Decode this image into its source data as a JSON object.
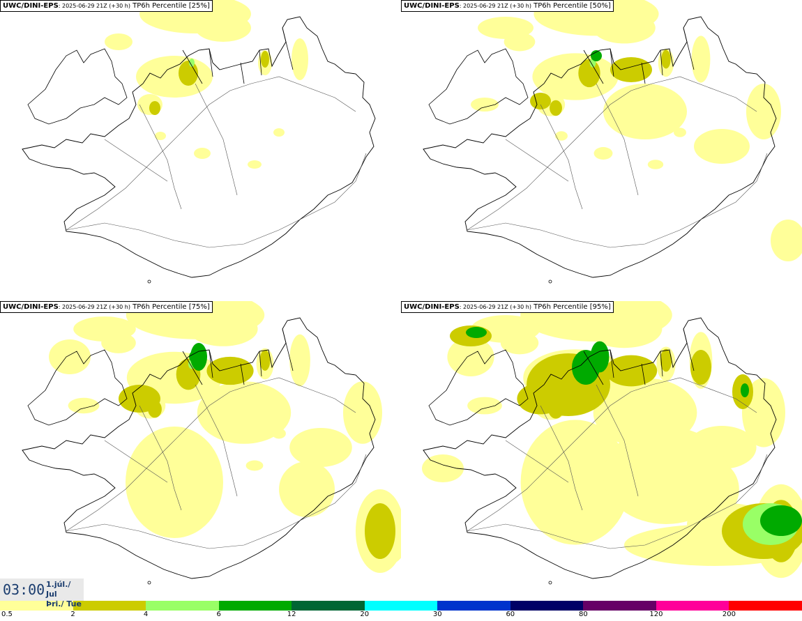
{
  "panels": [
    {
      "model": "UWC/DINI-EPS",
      "run": ": 2025-06-29 21Z (+30 h)",
      "product": " TP6h Percentile [25%]",
      "intensity": 1
    },
    {
      "model": "UWC/DINI-EPS",
      "run": ": 2025-06-29 21Z (+30 h)",
      "product": " TP6h Percentile [50%]",
      "intensity": 2
    },
    {
      "model": "UWC/DINI-EPS",
      "run": ": 2025-06-29 21Z (+30 h)",
      "product": " TP6h Percentile [75%]",
      "intensity": 3
    },
    {
      "model": "UWC/DINI-EPS",
      "run": ": 2025-06-29 21Z (+30 h)",
      "product": " TP6h Percentile [95%]",
      "intensity": 4
    }
  ],
  "time": {
    "clock": "03:00",
    "date": "1.júl./ Jul",
    "weekday": "Þri./ Tue"
  },
  "colorbar": {
    "colors": [
      "#ffff99",
      "#cccc00",
      "#99ff66",
      "#00aa00",
      "#006633",
      "#00ffff",
      "#0033cc",
      "#000066",
      "#660066",
      "#ff0099",
      "#ff0000"
    ],
    "ticks": [
      "0.5",
      "2",
      "4",
      "6",
      "12",
      "20",
      "30",
      "60",
      "80",
      "120",
      "200"
    ]
  },
  "palette": {
    "light": "#ffff99",
    "olive": "#cccc00",
    "lightgreen": "#99ff66",
    "green": "#00aa00",
    "coast": "#000000"
  }
}
